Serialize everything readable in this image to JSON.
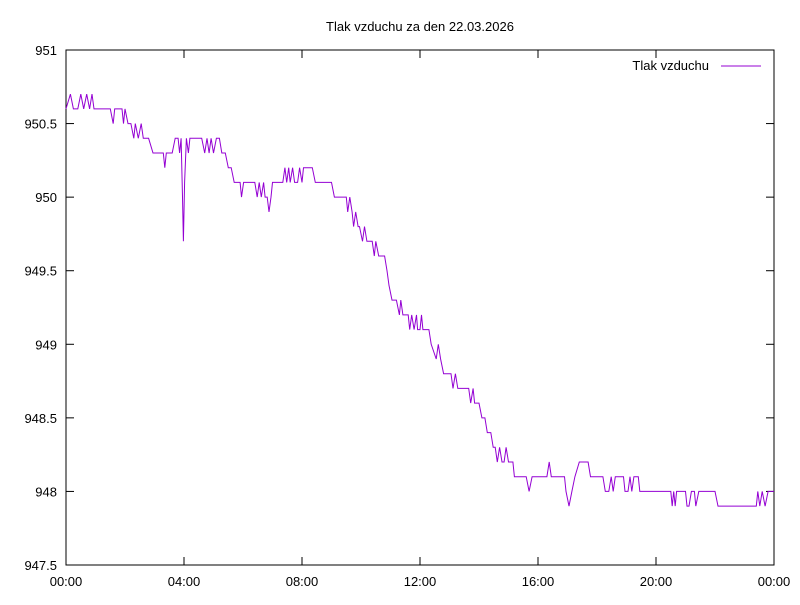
{
  "chart_data": {
    "type": "line",
    "title": "Tlak vzduchu za den 22.03.2026",
    "xlabel": "",
    "ylabel": "",
    "x_unit": "hours",
    "xlim": [
      0,
      24
    ],
    "ylim": [
      947.5,
      951
    ],
    "x_ticks": [
      {
        "value": 0,
        "label": "00:00"
      },
      {
        "value": 4,
        "label": "04:00"
      },
      {
        "value": 8,
        "label": "08:00"
      },
      {
        "value": 12,
        "label": "12:00"
      },
      {
        "value": 16,
        "label": "16:00"
      },
      {
        "value": 20,
        "label": "20:00"
      },
      {
        "value": 24,
        "label": "00:00"
      }
    ],
    "y_ticks": [
      {
        "value": 947.5,
        "label": "947.5"
      },
      {
        "value": 948,
        "label": "948"
      },
      {
        "value": 948.5,
        "label": "948.5"
      },
      {
        "value": 949,
        "label": "949"
      },
      {
        "value": 949.5,
        "label": "949.5"
      },
      {
        "value": 950,
        "label": "950"
      },
      {
        "value": 950.5,
        "label": "950.5"
      },
      {
        "value": 951,
        "label": "951"
      }
    ],
    "grid": false,
    "legend_position": "top-right",
    "series": [
      {
        "name": "Tlak vzduchu",
        "color": "#9400d3",
        "points": [
          [
            0.0,
            950.6
          ],
          [
            0.15,
            950.7
          ],
          [
            0.25,
            950.6
          ],
          [
            0.4,
            950.6
          ],
          [
            0.5,
            950.7
          ],
          [
            0.6,
            950.6
          ],
          [
            0.7,
            950.7
          ],
          [
            0.8,
            950.6
          ],
          [
            0.88,
            950.7
          ],
          [
            0.95,
            950.6
          ],
          [
            1.1,
            950.6
          ],
          [
            1.5,
            950.6
          ],
          [
            1.6,
            950.5
          ],
          [
            1.65,
            950.6
          ],
          [
            1.9,
            950.6
          ],
          [
            1.95,
            950.5
          ],
          [
            2.0,
            950.6
          ],
          [
            2.1,
            950.5
          ],
          [
            2.2,
            950.5
          ],
          [
            2.3,
            950.4
          ],
          [
            2.35,
            950.5
          ],
          [
            2.45,
            950.4
          ],
          [
            2.55,
            950.5
          ],
          [
            2.62,
            950.4
          ],
          [
            2.8,
            950.4
          ],
          [
            2.95,
            950.3
          ],
          [
            3.3,
            950.3
          ],
          [
            3.35,
            950.2
          ],
          [
            3.4,
            950.3
          ],
          [
            3.6,
            950.3
          ],
          [
            3.7,
            950.4
          ],
          [
            3.8,
            950.4
          ],
          [
            3.85,
            950.3
          ],
          [
            3.9,
            950.4
          ],
          [
            3.95,
            950.0
          ],
          [
            3.98,
            949.7
          ],
          [
            4.02,
            950.1
          ],
          [
            4.08,
            950.4
          ],
          [
            4.15,
            950.3
          ],
          [
            4.2,
            950.4
          ],
          [
            4.35,
            950.4
          ],
          [
            4.6,
            950.4
          ],
          [
            4.7,
            950.3
          ],
          [
            4.78,
            950.4
          ],
          [
            4.85,
            950.3
          ],
          [
            4.92,
            950.4
          ],
          [
            5.0,
            950.3
          ],
          [
            5.1,
            950.4
          ],
          [
            5.2,
            950.4
          ],
          [
            5.28,
            950.3
          ],
          [
            5.4,
            950.3
          ],
          [
            5.5,
            950.2
          ],
          [
            5.6,
            950.2
          ],
          [
            5.7,
            950.1
          ],
          [
            5.9,
            950.1
          ],
          [
            5.95,
            950.0
          ],
          [
            6.02,
            950.1
          ],
          [
            6.4,
            950.1
          ],
          [
            6.48,
            950.0
          ],
          [
            6.55,
            950.1
          ],
          [
            6.62,
            950.0
          ],
          [
            6.7,
            950.1
          ],
          [
            6.75,
            950.0
          ],
          [
            6.82,
            950.0
          ],
          [
            6.88,
            949.9
          ],
          [
            6.95,
            950.0
          ],
          [
            7.0,
            950.1
          ],
          [
            7.35,
            950.1
          ],
          [
            7.42,
            950.2
          ],
          [
            7.48,
            950.1
          ],
          [
            7.55,
            950.2
          ],
          [
            7.6,
            950.1
          ],
          [
            7.68,
            950.2
          ],
          [
            7.75,
            950.1
          ],
          [
            7.85,
            950.1
          ],
          [
            7.92,
            950.2
          ],
          [
            8.0,
            950.1
          ],
          [
            8.05,
            950.2
          ],
          [
            8.25,
            950.2
          ],
          [
            8.35,
            950.2
          ],
          [
            8.45,
            950.1
          ],
          [
            9.0,
            950.1
          ],
          [
            9.1,
            950.0
          ],
          [
            9.5,
            950.0
          ],
          [
            9.55,
            949.9
          ],
          [
            9.62,
            950.0
          ],
          [
            9.7,
            949.9
          ],
          [
            9.75,
            949.8
          ],
          [
            9.82,
            949.9
          ],
          [
            9.9,
            949.8
          ],
          [
            9.95,
            949.8
          ],
          [
            10.05,
            949.7
          ],
          [
            10.12,
            949.8
          ],
          [
            10.2,
            949.7
          ],
          [
            10.38,
            949.7
          ],
          [
            10.45,
            949.6
          ],
          [
            10.5,
            949.7
          ],
          [
            10.6,
            949.6
          ],
          [
            10.8,
            949.6
          ],
          [
            10.88,
            949.5
          ],
          [
            10.95,
            949.4
          ],
          [
            11.05,
            949.3
          ],
          [
            11.2,
            949.3
          ],
          [
            11.3,
            949.2
          ],
          [
            11.35,
            949.3
          ],
          [
            11.42,
            949.2
          ],
          [
            11.6,
            949.2
          ],
          [
            11.65,
            949.1
          ],
          [
            11.72,
            949.2
          ],
          [
            11.8,
            949.1
          ],
          [
            11.88,
            949.2
          ],
          [
            11.92,
            949.1
          ],
          [
            12.0,
            949.1
          ],
          [
            12.05,
            949.2
          ],
          [
            12.1,
            949.1
          ],
          [
            12.3,
            949.1
          ],
          [
            12.38,
            949.0
          ],
          [
            12.55,
            948.9
          ],
          [
            12.62,
            949.0
          ],
          [
            12.7,
            948.9
          ],
          [
            12.8,
            948.8
          ],
          [
            12.95,
            948.8
          ],
          [
            13.05,
            948.8
          ],
          [
            13.12,
            948.7
          ],
          [
            13.2,
            948.8
          ],
          [
            13.28,
            948.7
          ],
          [
            13.65,
            948.7
          ],
          [
            13.72,
            948.6
          ],
          [
            13.8,
            948.7
          ],
          [
            13.85,
            948.6
          ],
          [
            14.0,
            948.6
          ],
          [
            14.1,
            948.5
          ],
          [
            14.2,
            948.5
          ],
          [
            14.28,
            948.4
          ],
          [
            14.4,
            948.4
          ],
          [
            14.48,
            948.3
          ],
          [
            14.55,
            948.3
          ],
          [
            14.62,
            948.2
          ],
          [
            14.7,
            948.3
          ],
          [
            14.78,
            948.2
          ],
          [
            14.85,
            948.2
          ],
          [
            14.92,
            948.3
          ],
          [
            15.0,
            948.2
          ],
          [
            15.15,
            948.2
          ],
          [
            15.2,
            948.1
          ],
          [
            15.6,
            948.1
          ],
          [
            15.7,
            948.0
          ],
          [
            15.8,
            948.1
          ],
          [
            16.3,
            948.1
          ],
          [
            16.38,
            948.2
          ],
          [
            16.45,
            948.1
          ],
          [
            16.9,
            948.1
          ],
          [
            16.95,
            948.0
          ],
          [
            17.05,
            947.9
          ],
          [
            17.15,
            948.0
          ],
          [
            17.25,
            948.1
          ],
          [
            17.4,
            948.2
          ],
          [
            17.7,
            948.2
          ],
          [
            17.78,
            948.1
          ],
          [
            18.2,
            948.1
          ],
          [
            18.28,
            948.0
          ],
          [
            18.4,
            948.0
          ],
          [
            18.48,
            948.1
          ],
          [
            18.55,
            948.0
          ],
          [
            18.62,
            948.1
          ],
          [
            18.9,
            948.1
          ],
          [
            18.95,
            948.0
          ],
          [
            19.05,
            948.0
          ],
          [
            19.12,
            948.1
          ],
          [
            19.18,
            948.0
          ],
          [
            19.25,
            948.1
          ],
          [
            19.4,
            948.1
          ],
          [
            19.45,
            948.0
          ],
          [
            20.5,
            948.0
          ],
          [
            20.55,
            947.9
          ],
          [
            20.6,
            948.0
          ],
          [
            20.65,
            947.9
          ],
          [
            20.7,
            948.0
          ],
          [
            21.0,
            948.0
          ],
          [
            21.05,
            947.9
          ],
          [
            21.12,
            947.9
          ],
          [
            21.2,
            948.0
          ],
          [
            21.3,
            948.0
          ],
          [
            21.35,
            947.9
          ],
          [
            21.45,
            948.0
          ],
          [
            22.0,
            948.0
          ],
          [
            22.1,
            947.9
          ],
          [
            23.0,
            947.9
          ],
          [
            23.4,
            947.9
          ],
          [
            23.45,
            948.0
          ],
          [
            23.52,
            947.9
          ],
          [
            23.6,
            948.0
          ],
          [
            23.7,
            947.9
          ],
          [
            23.8,
            948.0
          ],
          [
            24.0,
            948.0
          ]
        ]
      }
    ]
  }
}
